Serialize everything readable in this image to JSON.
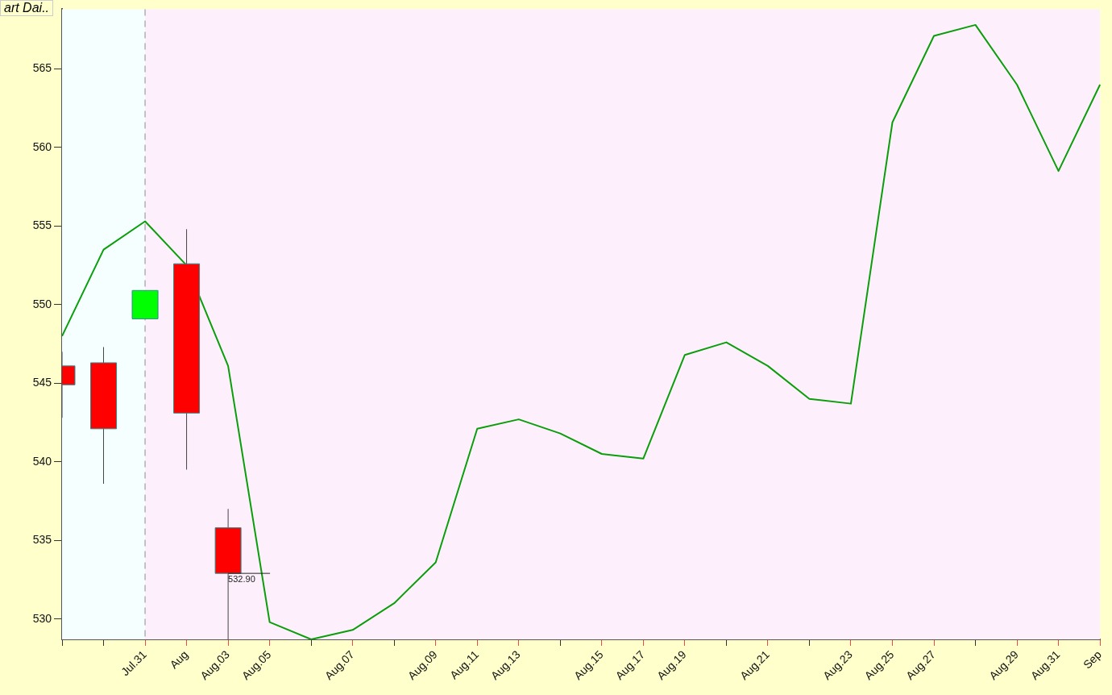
{
  "chart_data": {
    "type": "candlestick",
    "categories": [
      null,
      null,
      "Jul.31",
      "Aug",
      "Aug.03",
      "Aug.05",
      null,
      "Aug.07",
      null,
      "Aug.09",
      "Aug.11",
      "Aug.13",
      null,
      "Aug.15",
      "Aug.17",
      "Aug.19",
      null,
      "Aug.21",
      null,
      "Aug.23",
      "Aug.25",
      "Aug.27",
      null,
      "Aug.29",
      "Aug.31",
      "Sep"
    ],
    "series": [
      {
        "type": "candlestick",
        "ohlc": [
          [
            546.1,
            547.0,
            542.8,
            544.9
          ],
          [
            546.3,
            547.3,
            538.6,
            542.1
          ],
          [
            549.1,
            550.9,
            549.1,
            550.9
          ],
          [
            552.6,
            554.8,
            539.5,
            543.1
          ],
          [
            535.8,
            537.0,
            528.7,
            532.9
          ],
          null,
          null,
          null,
          null,
          null,
          null,
          null,
          null,
          null,
          null,
          null,
          null,
          null,
          null,
          null,
          null,
          null,
          null,
          null,
          null,
          null
        ],
        "colors": [
          "#ff0000",
          "#ff0000",
          "#00ff00",
          "#ff0000",
          "#ff0000",
          null,
          null,
          null,
          null,
          null,
          null,
          null,
          null,
          null,
          null,
          null,
          null,
          null,
          null,
          null,
          null,
          null,
          null,
          null,
          null,
          null
        ]
      },
      {
        "type": "line",
        "color": "#0a9e0a",
        "values": [
          548.0,
          553.5,
          555.3,
          552.5,
          546.1,
          529.8,
          528.7,
          529.3,
          531.0,
          533.6,
          542.1,
          542.7,
          541.8,
          540.5,
          540.2,
          546.8,
          547.6,
          546.1,
          544.0,
          543.7,
          561.6,
          567.1,
          567.8,
          564.0,
          558.5,
          564.0
        ]
      }
    ],
    "ylim": [
      528.7,
      568.8
    ],
    "yticks": [
      530,
      535,
      540,
      545,
      550,
      555,
      560,
      565
    ],
    "bands": [
      {
        "axis": "x",
        "from": "Jul.31",
        "to": "Sep",
        "color": "#fdf0fc"
      }
    ],
    "ref_lines": [
      {
        "axis": "x",
        "value": "Jul.31",
        "color": "#b0b0b0",
        "line_style": "dashed"
      }
    ],
    "annotations": [
      {
        "text": "532.90",
        "x": "Aug.03",
        "y": 532.9
      },
      "art Dai.."
    ],
    "grid": false,
    "legend": false,
    "marker": "none",
    "line_style": "solid"
  }
}
